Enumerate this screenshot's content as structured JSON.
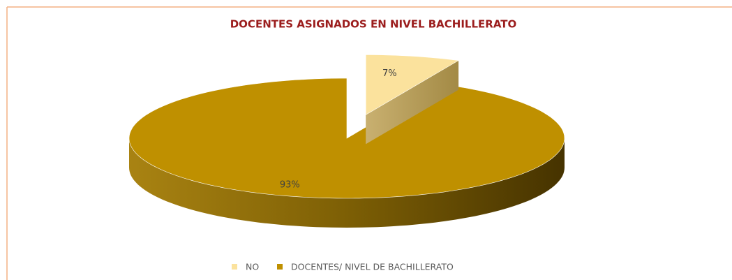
{
  "chart_data": {
    "type": "pie3d",
    "title": "DOCENTES ASIGNADOS EN NIVEL BACHILLERATO",
    "categories": [
      "NO",
      "DOCENTES/ NIVEL DE BACHILLERATO"
    ],
    "values": [
      7,
      93
    ],
    "value_labels": [
      "7%",
      "93%"
    ],
    "colors": [
      "#fbe29d",
      "#bf9000"
    ],
    "legend": "bottom"
  }
}
